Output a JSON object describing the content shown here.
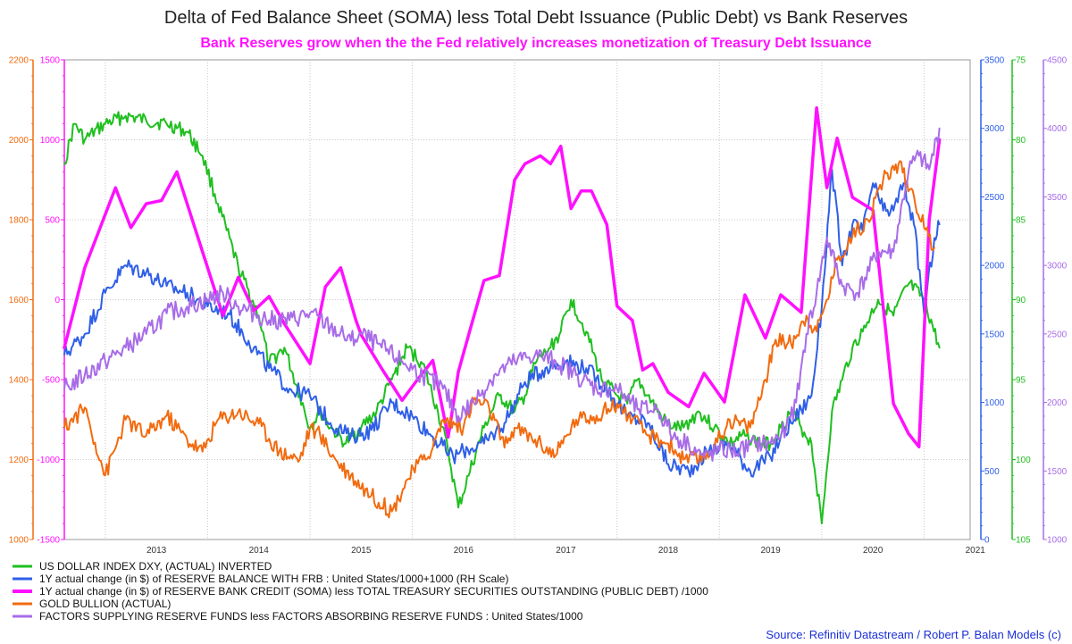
{
  "title": "Delta of Fed Balance Sheet (SOMA) less Total Debt Issuance (Public Debt) vs Bank Reserves",
  "subtitle": "Bank Reserves grow when the the Fed relatively increases monetization of Treasury Debt Issuance",
  "source": "Source: Refinitiv Datastream / Robert P. Balan Models (c)",
  "colors": {
    "green": "#1fbf1f",
    "blue": "#2f5fe8",
    "magenta": "#ff10ff",
    "orange": "#f26b0f",
    "purple": "#a86ce8",
    "grid": "#c8c8c8",
    "subtitle": "#ff10ff",
    "source": "#1a2fd6"
  },
  "chart_data": {
    "type": "line",
    "x_ticks": [
      "2013",
      "2014",
      "2015",
      "2016",
      "2017",
      "2018",
      "2019",
      "2020",
      "2021"
    ],
    "axes": {
      "gold_axis": {
        "side": "left-outer",
        "color": "#f26b0f",
        "ylim": [
          1000,
          2200
        ],
        "ticks": [
          "1000",
          "1200",
          "1400",
          "1600",
          "1800",
          "2000",
          "2200"
        ]
      },
      "soma_axis": {
        "side": "left-inner",
        "color": "#ff10ff",
        "ylim": [
          -1500,
          1500
        ],
        "ticks": [
          "-1500",
          "-1000",
          "-500",
          "0",
          "500",
          "1000",
          "1500"
        ]
      },
      "reserve_axis": {
        "side": "right-1",
        "color": "#2f5fe8",
        "ylim": [
          0,
          3500
        ],
        "ticks": [
          "0",
          "500",
          "1000",
          "1500",
          "2000",
          "2500",
          "3000",
          "3500"
        ]
      },
      "dxy_axis": {
        "side": "right-2",
        "color": "#1fbf1f",
        "ylim": [
          75,
          105
        ],
        "inverted": true,
        "ticks": [
          "75",
          "80",
          "85",
          "90",
          "95",
          "100",
          "105"
        ]
      },
      "factors_axis": {
        "side": "right-3",
        "color": "#a86ce8",
        "ylim": [
          1000,
          4500
        ],
        "ticks": [
          "1000",
          "1500",
          "2000",
          "2500",
          "3000",
          "3500",
          "4000",
          "4500"
        ]
      }
    },
    "series": [
      {
        "name": "US DOLLAR INDEX DXY, (ACTUAL) INVERTED",
        "color": "#1fbf1f",
        "axis": "dxy_axis",
        "x": [
          2012.6,
          2012.7,
          2012.8,
          2013.0,
          2013.2,
          2013.4,
          2013.6,
          2013.8,
          2013.95,
          2014.1,
          2014.3,
          2014.5,
          2014.6,
          2014.75,
          2014.9,
          2015.0,
          2015.1,
          2015.2,
          2015.35,
          2015.5,
          2015.65,
          2015.8,
          2015.95,
          2016.1,
          2016.25,
          2016.35,
          2016.45,
          2016.55,
          2016.7,
          2016.85,
          2017.0,
          2017.1,
          2017.2,
          2017.35,
          2017.45,
          2017.55,
          2017.7,
          2017.85,
          2018.0,
          2018.1,
          2018.2,
          2018.3,
          2018.45,
          2018.55,
          2018.65,
          2018.8,
          2018.95,
          2019.1,
          2019.25,
          2019.4,
          2019.5,
          2019.6,
          2019.7,
          2019.8,
          2019.9,
          2020.0,
          2020.1,
          2020.2,
          2020.3,
          2020.4,
          2020.55,
          2020.7,
          2020.85,
          2021.0,
          2021.15
        ],
        "values": [
          81.5,
          79,
          80,
          79,
          78.5,
          78.8,
          79,
          79.5,
          81,
          84,
          88,
          91,
          94,
          93,
          96,
          98,
          97,
          98,
          99,
          98,
          97,
          95,
          93,
          94,
          97,
          99.5,
          103,
          101,
          98,
          96,
          97,
          96,
          94,
          93,
          92,
          90,
          92,
          95,
          96,
          96.5,
          95,
          96,
          97.5,
          98,
          98,
          97,
          98,
          99,
          98.5,
          99,
          99,
          98,
          97,
          98,
          99,
          104,
          97,
          95,
          93,
          92,
          90,
          91,
          89,
          90,
          93
        ]
      },
      {
        "name": "1Y actual change (in $) of RESERVE BALANCE WITH FRB : United States/1000+1000 (RH Scale)",
        "color": "#2f5fe8",
        "axis": "reserve_axis",
        "x": [
          2012.6,
          2012.8,
          2013.0,
          2013.2,
          2013.4,
          2013.6,
          2013.8,
          2014.0,
          2014.2,
          2014.4,
          2014.6,
          2014.8,
          2015.0,
          2015.2,
          2015.4,
          2015.6,
          2015.8,
          2016.0,
          2016.2,
          2016.4,
          2016.5,
          2016.7,
          2016.9,
          2017.1,
          2017.3,
          2017.5,
          2017.7,
          2017.9,
          2018.1,
          2018.3,
          2018.5,
          2018.7,
          2018.9,
          2019.1,
          2019.3,
          2019.5,
          2019.6,
          2019.7,
          2019.8,
          2019.9,
          2020.0,
          2020.1,
          2020.2,
          2020.3,
          2020.4,
          2020.5,
          2020.6,
          2020.7,
          2020.8,
          2020.9,
          2021.0,
          2021.1,
          2021.15
        ],
        "values": [
          1350,
          1500,
          1800,
          2000,
          1950,
          1850,
          1800,
          1700,
          1650,
          1450,
          1250,
          1100,
          1050,
          850,
          750,
          800,
          1000,
          900,
          750,
          600,
          650,
          700,
          850,
          1150,
          1250,
          1300,
          1250,
          1100,
          900,
          850,
          550,
          500,
          650,
          700,
          500,
          600,
          750,
          850,
          950,
          1050,
          1700,
          2700,
          2000,
          2300,
          2250,
          2600,
          2400,
          2400,
          2600,
          2300,
          1650,
          2200,
          2300
        ]
      },
      {
        "name": "1Y actual change (in $) of RESERVE BANK CREDIT (SOMA) less TOTAL TREASURY SECURITIES OUTSTANDING (PUBLIC DEBT) /1000",
        "color": "#ff10ff",
        "axis": "soma_axis",
        "x": [
          2012.6,
          2012.8,
          2013.1,
          2013.25,
          2013.4,
          2013.55,
          2013.7,
          2013.8,
          2014.0,
          2014.15,
          2014.3,
          2014.45,
          2014.6,
          2014.75,
          2014.9,
          2015.0,
          2015.15,
          2015.3,
          2015.45,
          2015.5,
          2015.7,
          2015.9,
          2016.05,
          2016.2,
          2016.35,
          2016.45,
          2016.55,
          2016.7,
          2016.85,
          2017.0,
          2017.1,
          2017.25,
          2017.35,
          2017.45,
          2017.55,
          2017.65,
          2017.75,
          2017.9,
          2018.0,
          2018.15,
          2018.25,
          2018.35,
          2018.5,
          2018.7,
          2018.85,
          2019.05,
          2019.25,
          2019.45,
          2019.6,
          2019.8,
          2019.95,
          2020.05,
          2020.15,
          2020.3,
          2020.5,
          2020.7,
          2020.85,
          2020.95,
          2021.05,
          2021.15
        ],
        "values": [
          -300,
          200,
          700,
          450,
          600,
          620,
          800,
          600,
          200,
          -100,
          140,
          -70,
          20,
          -150,
          -300,
          -400,
          80,
          200,
          -130,
          -220,
          -430,
          -630,
          -500,
          -380,
          -860,
          -450,
          -220,
          120,
          150,
          750,
          850,
          900,
          850,
          960,
          570,
          680,
          680,
          470,
          -40,
          -130,
          -440,
          -400,
          -580,
          -670,
          -460,
          -640,
          30,
          -240,
          30,
          -80,
          1200,
          700,
          1010,
          640,
          560,
          -650,
          -840,
          -920,
          500,
          1000
        ]
      },
      {
        "name": "GOLD BULLION (ACTUAL)",
        "color": "#f26b0f",
        "axis": "gold_axis",
        "x": [
          2012.6,
          2012.8,
          2013.0,
          2013.2,
          2013.4,
          2013.6,
          2013.8,
          2013.95,
          2014.1,
          2014.3,
          2014.5,
          2014.7,
          2014.9,
          2015.0,
          2015.1,
          2015.25,
          2015.4,
          2015.6,
          2015.8,
          2015.95,
          2016.1,
          2016.2,
          2016.3,
          2016.5,
          2016.6,
          2016.75,
          2016.9,
          2017.0,
          2017.2,
          2017.4,
          2017.6,
          2017.8,
          2018.0,
          2018.15,
          2018.3,
          2018.5,
          2018.65,
          2018.8,
          2018.95,
          2019.1,
          2019.3,
          2019.45,
          2019.55,
          2019.7,
          2019.85,
          2019.95,
          2020.05,
          2020.15,
          2020.3,
          2020.45,
          2020.6,
          2020.75,
          2020.9,
          2021.0,
          2021.1
        ],
        "values": [
          1280,
          1330,
          1160,
          1300,
          1260,
          1310,
          1250,
          1220,
          1300,
          1320,
          1290,
          1220,
          1200,
          1280,
          1260,
          1200,
          1160,
          1110,
          1070,
          1150,
          1200,
          1230,
          1300,
          1280,
          1350,
          1330,
          1230,
          1280,
          1250,
          1210,
          1300,
          1310,
          1340,
          1300,
          1260,
          1240,
          1200,
          1200,
          1230,
          1300,
          1280,
          1400,
          1500,
          1490,
          1560,
          1520,
          1600,
          1700,
          1760,
          1800,
          1900,
          1940,
          1860,
          1780,
          1730
        ]
      },
      {
        "name": "FACTORS SUPPLYING RESERVE FUNDS less FACTORS ABSORBING RESERVE FUNDS : United States/1000",
        "color": "#a86ce8",
        "axis": "factors_axis",
        "x": [
          2012.6,
          2012.8,
          2013.0,
          2013.2,
          2013.4,
          2013.6,
          2013.8,
          2014.0,
          2014.15,
          2014.3,
          2014.45,
          2014.6,
          2014.8,
          2015.0,
          2015.2,
          2015.4,
          2015.5,
          2015.7,
          2015.9,
          2016.1,
          2016.3,
          2016.45,
          2016.6,
          2016.8,
          2017.0,
          2017.2,
          2017.4,
          2017.6,
          2017.8,
          2018.0,
          2018.2,
          2018.4,
          2018.55,
          2018.7,
          2018.85,
          2019.0,
          2019.2,
          2019.35,
          2019.5,
          2019.65,
          2019.75,
          2019.85,
          2019.95,
          2020.05,
          2020.2,
          2020.35,
          2020.55,
          2020.7,
          2020.85,
          2020.95,
          2021.05,
          2021.15
        ],
        "values": [
          2100,
          2200,
          2300,
          2400,
          2500,
          2650,
          2700,
          2750,
          2800,
          2700,
          2650,
          2600,
          2600,
          2650,
          2550,
          2450,
          2500,
          2400,
          2300,
          2200,
          2100,
          1900,
          2000,
          2200,
          2300,
          2350,
          2300,
          2200,
          2100,
          2100,
          1950,
          1950,
          1750,
          1700,
          1600,
          1650,
          1650,
          1700,
          1700,
          1800,
          2000,
          2500,
          2800,
          3200,
          2850,
          2800,
          3100,
          3100,
          3700,
          3800,
          3700,
          4000
        ]
      }
    ]
  }
}
